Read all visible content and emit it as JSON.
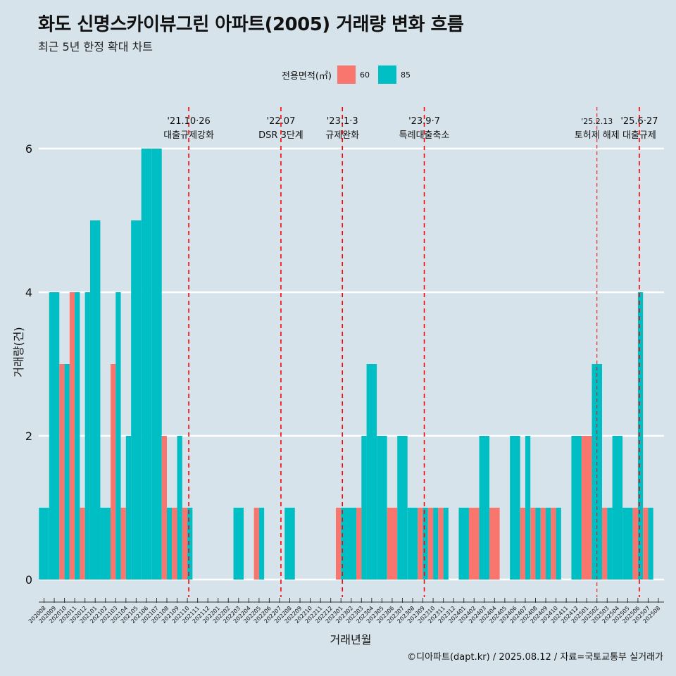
{
  "header": {
    "title": "화도 신명스카이뷰그린 아파트(2005) 거래량 변화 흐름",
    "subtitle": "최근 5년 한정 확대 차트"
  },
  "legend": {
    "title": "전용면적(㎡)",
    "items": [
      {
        "label": "60",
        "color": "#f8766d"
      },
      {
        "label": "85",
        "color": "#00bfc4"
      }
    ]
  },
  "footer": {
    "caption": "©디아파트(dapt.kr) / 2025.08.12 / 자료=국토교통부 실거래가"
  },
  "chart_data": {
    "type": "bar",
    "title": "화도 신명스카이뷰그린 아파트(2005) 거래량 변화 흐름",
    "xlabel": "거래년월",
    "ylabel": "거래량(건)",
    "ylim": [
      0,
      6
    ],
    "yticks": [
      0,
      2,
      4,
      6
    ],
    "categories": [
      "202008",
      "202009",
      "202010",
      "202011",
      "202012",
      "202101",
      "202102",
      "202103",
      "202104",
      "202105",
      "202106",
      "202107",
      "202108",
      "202109",
      "202110",
      "202111",
      "202112",
      "202201",
      "202202",
      "202203",
      "202204",
      "202205",
      "202206",
      "202207",
      "202208",
      "202209",
      "202210",
      "202211",
      "202212",
      "202301",
      "202302",
      "202303",
      "202304",
      "202305",
      "202306",
      "202307",
      "202308",
      "202309",
      "202310",
      "202311",
      "202312",
      "202401",
      "202402",
      "202403",
      "202404",
      "202405",
      "202406",
      "202407",
      "202408",
      "202409",
      "202410",
      "202411",
      "202412",
      "202501",
      "202502",
      "202503",
      "202504",
      "202505",
      "202506",
      "202507",
      "202508"
    ],
    "series": [
      {
        "name": "60",
        "color": "#f8766d",
        "values": [
          0,
          0,
          3,
          4,
          1,
          0,
          0,
          3,
          1,
          0,
          0,
          0,
          2,
          1,
          1,
          0,
          0,
          0,
          0,
          0,
          0,
          1,
          0,
          0,
          0,
          0,
          0,
          0,
          0,
          1,
          0,
          1,
          0,
          0,
          1,
          0,
          0,
          1,
          1,
          1,
          0,
          0,
          1,
          0,
          1,
          0,
          0,
          1,
          1,
          1,
          1,
          0,
          0,
          2,
          0,
          1,
          0,
          0,
          1,
          1,
          0
        ]
      },
      {
        "name": "85",
        "color": "#00bfc4",
        "values": [
          1,
          4,
          3,
          4,
          4,
          5,
          1,
          4,
          2,
          5,
          6,
          6,
          1,
          2,
          1,
          0,
          0,
          0,
          0,
          1,
          0,
          1,
          0,
          0,
          1,
          0,
          0,
          0,
          0,
          1,
          1,
          2,
          3,
          2,
          0,
          2,
          1,
          1,
          1,
          1,
          0,
          1,
          0,
          2,
          0,
          0,
          2,
          2,
          1,
          1,
          1,
          0,
          2,
          0,
          3,
          1,
          2,
          1,
          4,
          1,
          0
        ]
      }
    ],
    "events": [
      {
        "date": "'21.10·26",
        "label": "대출규제강화",
        "after": "202110",
        "style": "dash"
      },
      {
        "date": "'22.07",
        "label": "DSR 3단계",
        "after": "202207",
        "style": "dash"
      },
      {
        "date": "'23.1·3",
        "label": "규제완화",
        "after": "202301",
        "style": "dash"
      },
      {
        "date": "'23.9·7",
        "label": "특례대출축소",
        "after": "202309",
        "style": "dash"
      },
      {
        "date": "'25.2.13",
        "label": "토허제 해제",
        "after": "202502",
        "style": "thin"
      },
      {
        "date": "'25.6·27",
        "label": "대출규제",
        "after": "202506",
        "style": "dash"
      }
    ]
  }
}
